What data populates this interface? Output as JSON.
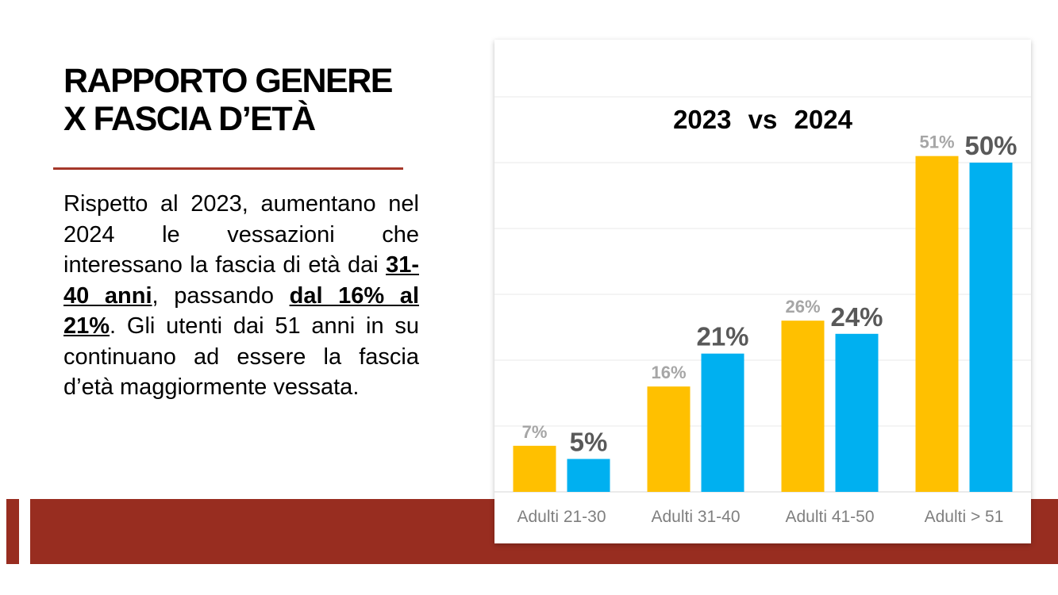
{
  "slide": {
    "title_line1": "RAPPORTO GENERE",
    "title_line2": "X FASCIA D’ETÀ",
    "body": {
      "p1": "Rispetto al 2023, aumentano nel 2024 le vessazioni che interessano la fascia di età dai ",
      "em1": "31-40 anni",
      "p2": ", passando ",
      "em2": "dal 16% al 21%",
      "p3": ". Gli utenti dai 51 anni in su continuano ad essere la fascia d’età maggiormente vessata."
    }
  },
  "colors": {
    "accent_band": "#982d20",
    "divider": "#a5382a",
    "series_2023": "#ffc000",
    "series_2024": "#00b0f0"
  },
  "chart_data": {
    "type": "bar",
    "title": "2023 vs 2024",
    "categories": [
      "Adulti 21-30",
      "Adulti 31-40",
      "Adulti 41-50",
      "Adulti > 51"
    ],
    "series": [
      {
        "values": [
          7,
          16,
          26,
          51
        ],
        "labels": [
          "7%",
          "16%",
          "26%",
          "51%"
        ]
      },
      {
        "values": [
          5,
          21,
          24,
          50
        ],
        "labels": [
          "5%",
          "21%",
          "24%",
          "50%"
        ]
      }
    ],
    "ylim": [
      0,
      60
    ],
    "grid": true,
    "legend": "none",
    "xlabel": "",
    "ylabel": ""
  }
}
